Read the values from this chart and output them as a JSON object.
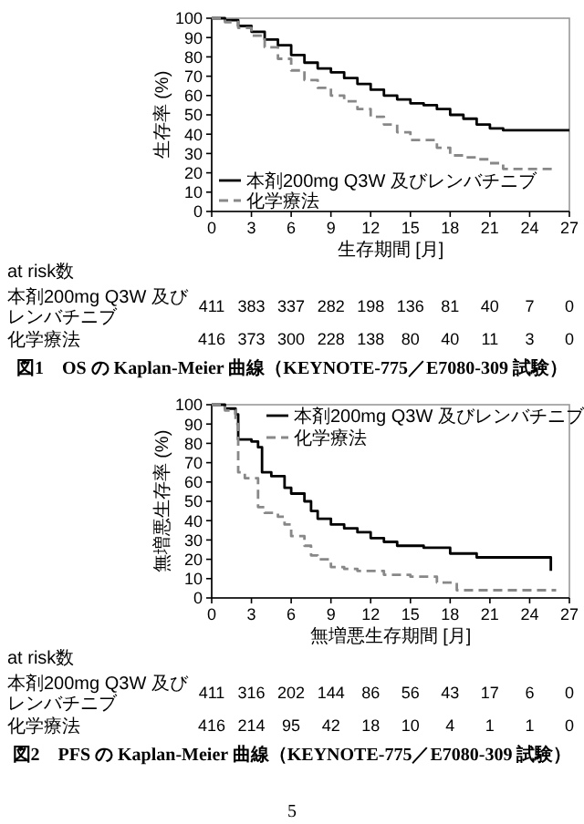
{
  "chart_data": [
    {
      "type": "step",
      "title": "図1　OS の Kaplan-Meier 曲線（KEYNOTE-775／E7080-309 試験）",
      "xlabel": "生存期間 [月]",
      "ylabel": "生存率 (%)",
      "xlim": [
        0,
        27
      ],
      "xticks": [
        0,
        3,
        6,
        9,
        12,
        15,
        18,
        21,
        24,
        27
      ],
      "ylim": [
        0,
        100
      ],
      "yticks": [
        0,
        10,
        20,
        30,
        40,
        50,
        60,
        70,
        80,
        90,
        100
      ],
      "legend": "bottom left",
      "annotations": [
        "at risk数",
        "本剤200mg Q3W 及びレンバチニブ",
        "411 383 337 282 198 136 81 40 7 0",
        "化学療法",
        "416 373 300 228 138 80 40 11 3 0"
      ],
      "series": [
        {
          "name": "本剤200mg Q3W 及びレンバチニブ",
          "color": "#000000",
          "line_style": "solid",
          "x": [
            0,
            1,
            2,
            3,
            4,
            5,
            6,
            7,
            8,
            9,
            10,
            11,
            12,
            13,
            14,
            15,
            16,
            17,
            18,
            19,
            20,
            21,
            22,
            27
          ],
          "values": [
            100,
            99,
            96,
            93,
            89,
            86,
            81,
            77,
            74,
            72,
            69,
            66,
            63,
            60,
            58,
            56,
            55,
            53,
            50,
            48,
            45,
            43,
            42,
            42
          ]
        },
        {
          "name": "化学療法",
          "color": "#888888",
          "line_style": "dashed",
          "x": [
            0,
            1,
            2,
            3,
            4,
            5,
            6,
            7,
            8,
            9,
            10,
            11,
            12,
            13,
            14,
            15,
            16,
            17,
            18,
            19,
            20,
            21,
            22,
            26
          ],
          "values": [
            100,
            98,
            95,
            91,
            85,
            79,
            73,
            68,
            64,
            60,
            57,
            53,
            49,
            45,
            41,
            37,
            37,
            33,
            29,
            28,
            27,
            25,
            22,
            22
          ]
        }
      ]
    },
    {
      "type": "step",
      "title": "図2　PFS の Kaplan-Meier 曲線（KEYNOTE-775／E7080-309 試験）",
      "xlabel": "無増悪生存期間 [月]",
      "ylabel": "無増悪生存率 (%)",
      "xlim": [
        0,
        27
      ],
      "xticks": [
        0,
        3,
        6,
        9,
        12,
        15,
        18,
        21,
        24,
        27
      ],
      "ylim": [
        0,
        100
      ],
      "yticks": [
        0,
        10,
        20,
        30,
        40,
        50,
        60,
        70,
        80,
        90,
        100
      ],
      "legend": "top right",
      "annotations": [
        "at risk数",
        "本剤200mg Q3W 及びレンバチニブ",
        "411 316 202 144 86 56 43 17 6 0",
        "化学療法",
        "416 214 95 42 18 10 4 1 1 0",
        "5"
      ],
      "series": [
        {
          "name": "本剤200mg Q3W 及びレンバチニブ",
          "color": "#000000",
          "line_style": "solid",
          "x": [
            0,
            1,
            1.8,
            2,
            3,
            3.5,
            3.8,
            4.5,
            5.5,
            6,
            7,
            7.5,
            8,
            9,
            10,
            11,
            12,
            13,
            14,
            16,
            18,
            20,
            25.5,
            25.6
          ],
          "values": [
            100,
            98,
            95,
            82,
            81,
            78,
            65,
            63,
            57,
            54,
            50,
            45,
            41,
            38,
            36,
            34,
            31,
            29,
            27,
            26,
            23,
            21,
            21,
            14
          ]
        },
        {
          "name": "化学療法",
          "color": "#888888",
          "line_style": "dashed",
          "x": [
            0,
            1,
            1.8,
            2,
            2.5,
            3.5,
            4,
            5,
            5.5,
            6,
            7,
            7.5,
            8,
            9,
            10,
            11,
            13,
            15,
            17,
            18.5,
            26
          ],
          "values": [
            100,
            97,
            90,
            65,
            62,
            47,
            44,
            42,
            38,
            32,
            27,
            22,
            20,
            16,
            15,
            14,
            12,
            11,
            8,
            4,
            4
          ]
        }
      ]
    }
  ]
}
